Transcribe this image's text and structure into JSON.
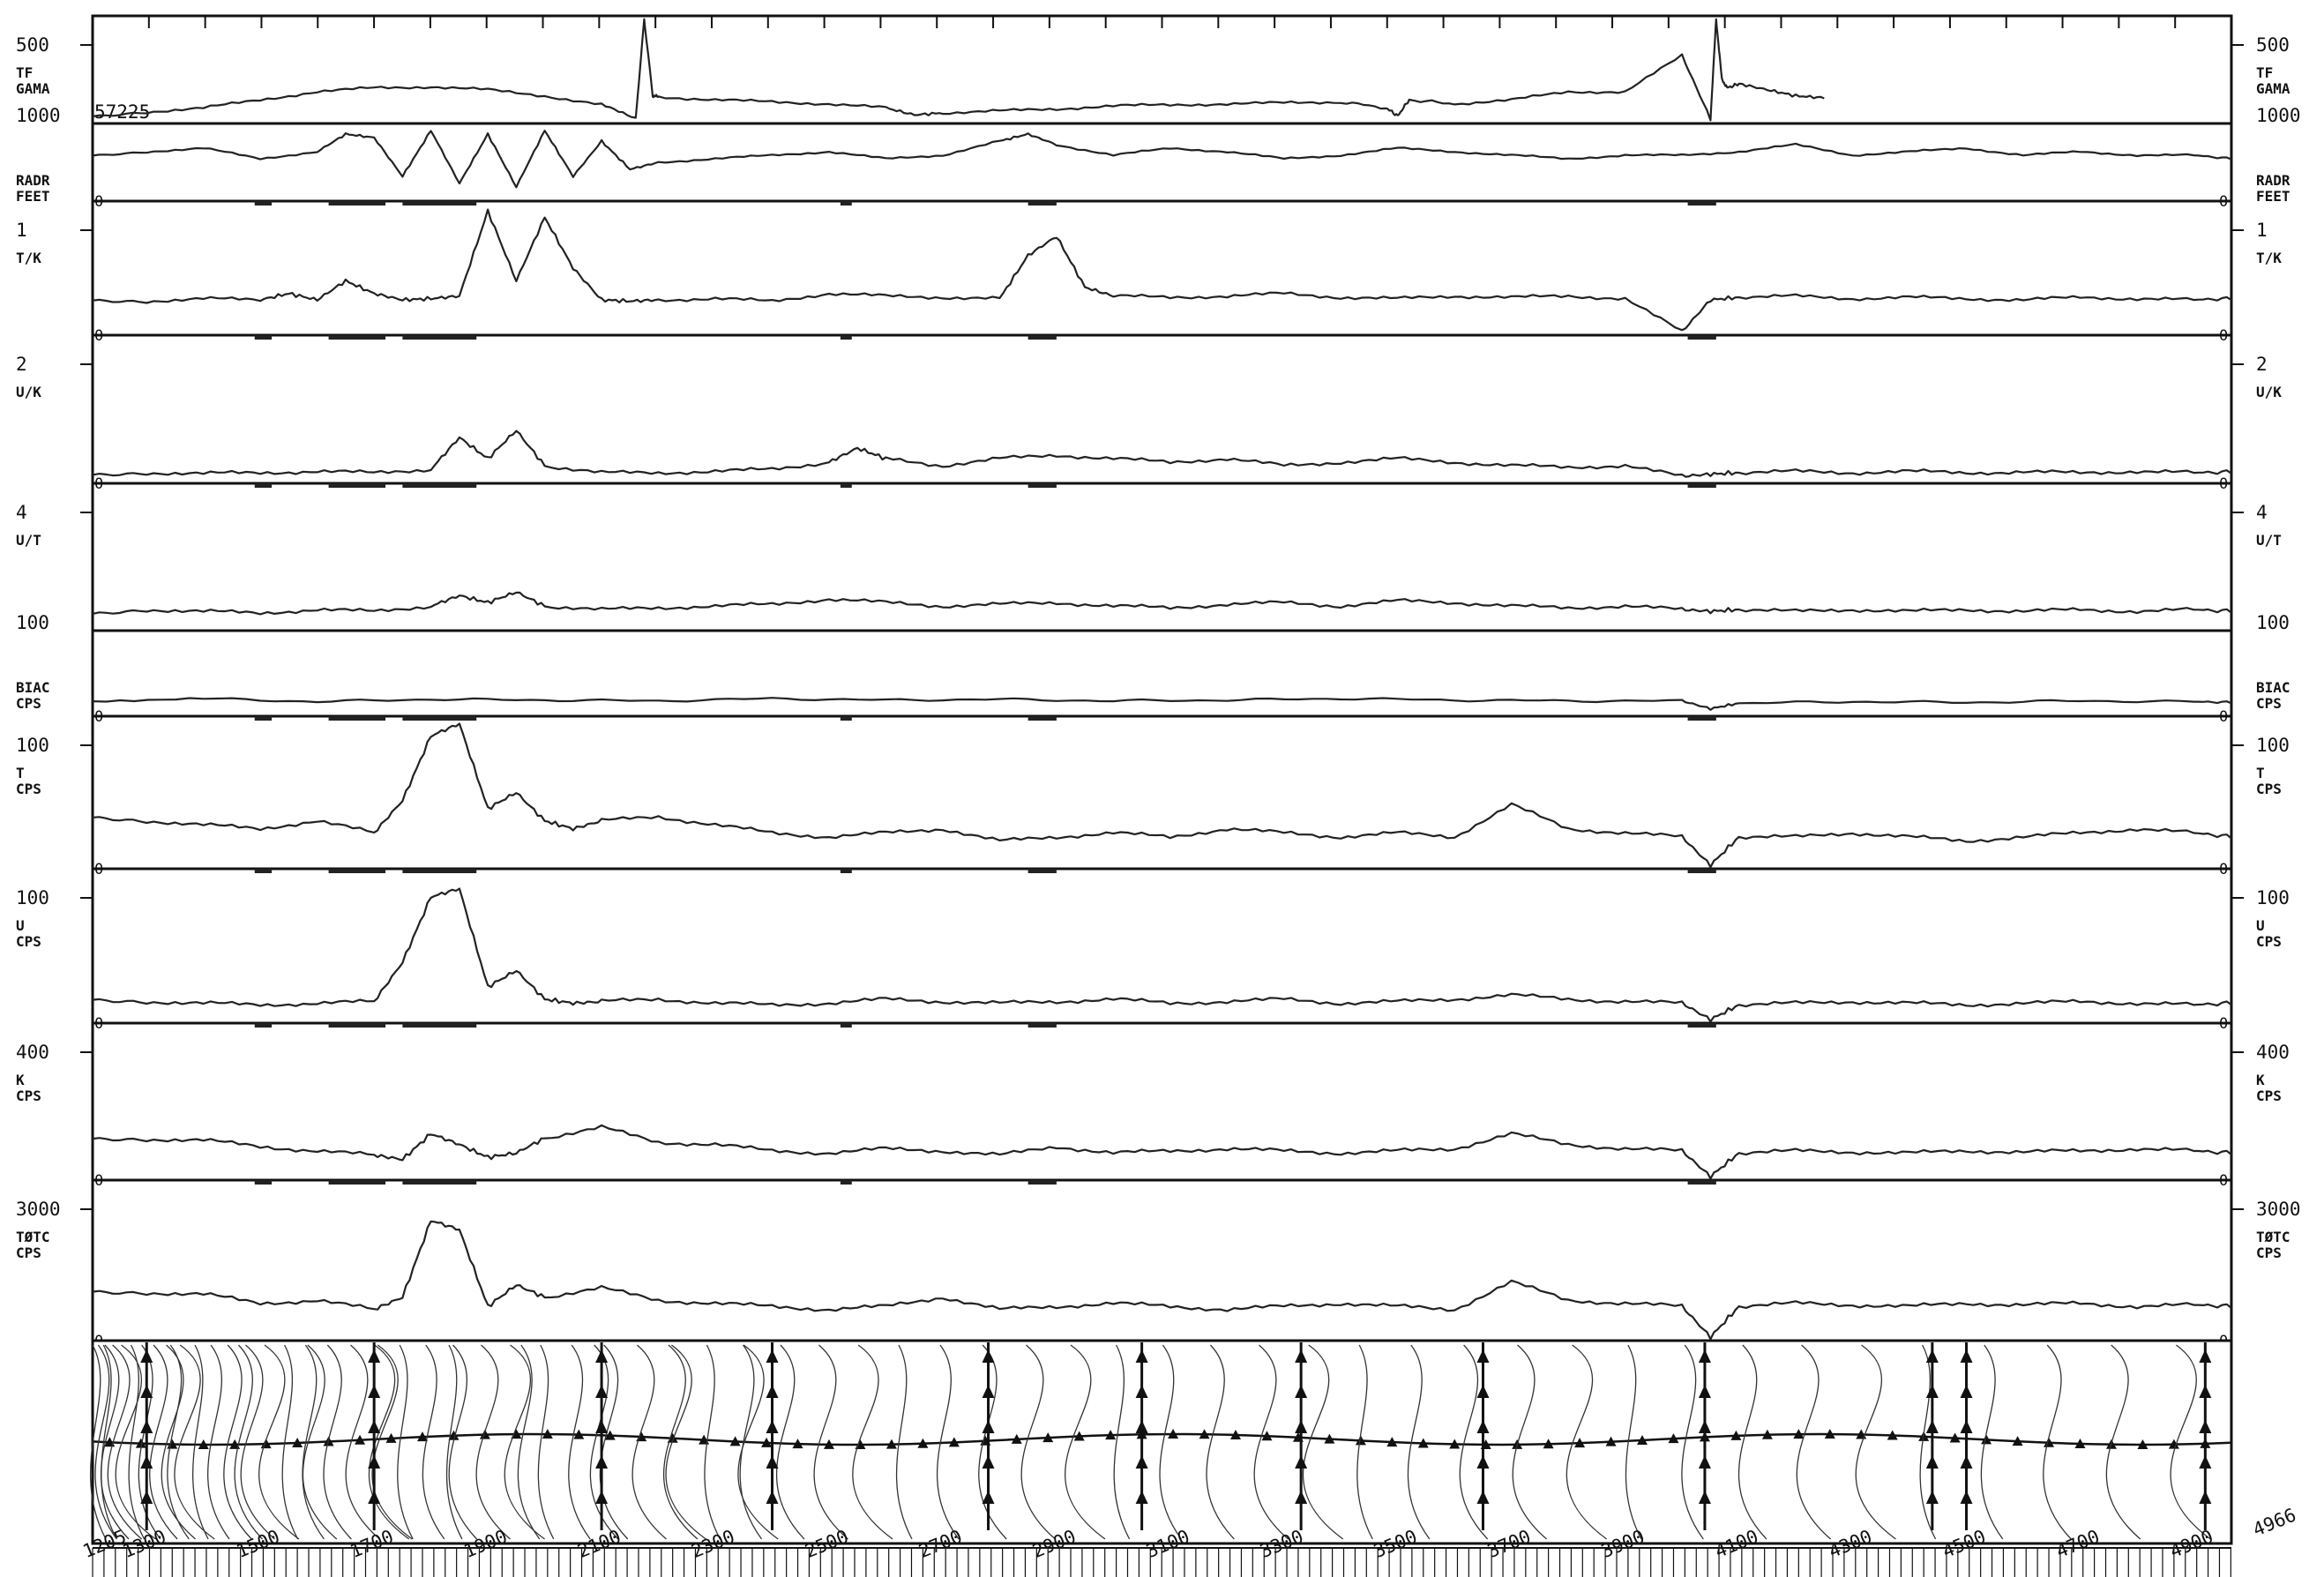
{
  "chart_data": {
    "type": "line",
    "record_id": "57225",
    "x_axis": {
      "range": [
        1205,
        4966
      ],
      "start_label": "1205",
      "end_label": "4966",
      "tick_labels": [
        "1300",
        "1500",
        "1700",
        "1900",
        "2100",
        "2300",
        "2500",
        "2700",
        "2900",
        "3100",
        "3300",
        "3500",
        "3700",
        "3900",
        "4100",
        "4300",
        "4500",
        "4700",
        "4900"
      ]
    },
    "panels": [
      {
        "id": "tf_gama",
        "label": [
          "TF",
          "GAMA"
        ],
        "scale_top": "500",
        "scale_bottom": "1000",
        "range": [
          500,
          1000
        ],
        "color": "#222222",
        "baseline": "",
        "extra": "57225",
        "x": [
          1205,
          1300,
          1400,
          1500,
          1600,
          1700,
          1800,
          1900,
          2000,
          2100,
          2160,
          2175,
          2190,
          2200,
          2300,
          2400,
          2500,
          2600,
          2650,
          2700,
          2800,
          2900,
          3000,
          3100,
          3200,
          3300,
          3400,
          3480,
          3500,
          3520,
          3600,
          3700,
          3800,
          3900,
          4000,
          4050,
          4060,
          4070,
          4080,
          4100,
          4150,
          4200,
          4250
        ],
        "y": [
          520,
          540,
          560,
          600,
          640,
          660,
          665,
          650,
          620,
          575,
          505,
          1000,
          620,
          615,
          600,
          590,
          580,
          560,
          525,
          535,
          545,
          555,
          570,
          575,
          580,
          585,
          590,
          560,
          520,
          600,
          580,
          600,
          640,
          640,
          820,
          505,
          1000,
          700,
          660,
          680,
          650,
          620,
          610
        ]
      },
      {
        "id": "radr_feet",
        "label": [
          "RADR",
          "FEET"
        ],
        "scale_top": "",
        "scale_bottom": "0",
        "range": [
          0,
          1000
        ],
        "color": "#222222",
        "baseline": "0",
        "x": [
          1205,
          1300,
          1400,
          1500,
          1600,
          1650,
          1700,
          1750,
          1800,
          1850,
          1900,
          1950,
          2000,
          2050,
          2100,
          2150,
          2200,
          2300,
          2400,
          2500,
          2600,
          2700,
          2800,
          2850,
          2900,
          3000,
          3100,
          3200,
          3300,
          3400,
          3500,
          3600,
          3700,
          3800,
          3900,
          4000,
          4100,
          4200,
          4300,
          4400,
          4500,
          4600,
          4700,
          4800,
          4900,
          4966
        ],
        "y": [
          600,
          650,
          700,
          550,
          650,
          900,
          850,
          300,
          950,
          200,
          900,
          150,
          950,
          300,
          800,
          400,
          500,
          550,
          600,
          650,
          550,
          600,
          800,
          900,
          750,
          600,
          700,
          650,
          550,
          600,
          700,
          650,
          600,
          550,
          600,
          600,
          650,
          750,
          600,
          650,
          700,
          600,
          650,
          600,
          600,
          550
        ]
      },
      {
        "id": "t_k",
        "label": [
          "T/K"
        ],
        "scale_top": "1",
        "scale_bottom": "0",
        "range": [
          0,
          1
        ],
        "color": "#222222",
        "baseline": "0",
        "x": [
          1205,
          1300,
          1400,
          1500,
          1550,
          1600,
          1650,
          1700,
          1750,
          1800,
          1850,
          1900,
          1950,
          2000,
          2050,
          2100,
          2150,
          2200,
          2300,
          2400,
          2500,
          2600,
          2700,
          2800,
          2850,
          2900,
          2950,
          3000,
          3100,
          3200,
          3300,
          3400,
          3500,
          3600,
          3700,
          3800,
          3900,
          4000,
          4050,
          4100,
          4200,
          4300,
          4400,
          4500,
          4600,
          4700,
          4800,
          4900,
          4966
        ],
        "y": [
          0.25,
          0.24,
          0.26,
          0.25,
          0.3,
          0.25,
          0.4,
          0.3,
          0.25,
          0.26,
          0.28,
          0.95,
          0.4,
          0.9,
          0.5,
          0.25,
          0.24,
          0.25,
          0.26,
          0.24,
          0.3,
          0.28,
          0.27,
          0.26,
          0.6,
          0.75,
          0.35,
          0.28,
          0.27,
          0.28,
          0.3,
          0.27,
          0.26,
          0.28,
          0.27,
          0.28,
          0.26,
          0.0,
          0.25,
          0.27,
          0.28,
          0.26,
          0.27,
          0.26,
          0.25,
          0.27,
          0.26,
          0.25,
          0.26
        ]
      },
      {
        "id": "u_k",
        "label": [
          "U/K"
        ],
        "scale_top": "2",
        "scale_bottom": "0",
        "range": [
          0,
          2
        ],
        "color": "#222222",
        "baseline": "0",
        "x": [
          1205,
          1300,
          1400,
          1500,
          1600,
          1700,
          1800,
          1850,
          1900,
          1950,
          2000,
          2100,
          2200,
          2300,
          2400,
          2500,
          2550,
          2600,
          2700,
          2800,
          2900,
          3000,
          3100,
          3200,
          3300,
          3400,
          3500,
          3600,
          3700,
          3800,
          3900,
          4000,
          4050,
          4100,
          4200,
          4300,
          4400,
          4500,
          4600,
          4700,
          4800,
          4900,
          4966
        ],
        "y": [
          0.08,
          0.1,
          0.09,
          0.1,
          0.12,
          0.1,
          0.15,
          0.6,
          0.3,
          0.7,
          0.2,
          0.1,
          0.1,
          0.12,
          0.15,
          0.25,
          0.45,
          0.3,
          0.2,
          0.3,
          0.35,
          0.3,
          0.25,
          0.3,
          0.2,
          0.25,
          0.3,
          0.25,
          0.2,
          0.18,
          0.2,
          0.05,
          0.08,
          0.1,
          0.12,
          0.1,
          0.12,
          0.1,
          0.11,
          0.1,
          0.12,
          0.1,
          0.11
        ]
      },
      {
        "id": "u_t",
        "label": [
          "U/T"
        ],
        "scale_top": "4",
        "scale_bottom": "100",
        "range": [
          0,
          4
        ],
        "color": "#222222",
        "baseline": "",
        "x": [
          1205,
          1300,
          1400,
          1500,
          1600,
          1700,
          1800,
          1850,
          1900,
          1950,
          2000,
          2100,
          2200,
          2300,
          2400,
          2500,
          2600,
          2700,
          2800,
          2900,
          3000,
          3100,
          3200,
          3300,
          3400,
          3500,
          3600,
          3700,
          3800,
          3900,
          4000,
          4050,
          4100,
          4200,
          4300,
          4400,
          4500,
          4600,
          4700,
          4800,
          4900,
          4966
        ],
        "y": [
          0.4,
          0.5,
          0.45,
          0.4,
          0.5,
          0.45,
          0.6,
          0.9,
          0.7,
          1.0,
          0.6,
          0.5,
          0.55,
          0.6,
          0.65,
          0.8,
          0.7,
          0.6,
          0.65,
          0.7,
          0.6,
          0.55,
          0.65,
          0.7,
          0.6,
          0.75,
          0.7,
          0.6,
          0.55,
          0.6,
          0.5,
          0.45,
          0.5,
          0.45,
          0.5,
          0.45,
          0.5,
          0.45,
          0.5,
          0.45,
          0.5,
          0.45
        ]
      },
      {
        "id": "biac_cps",
        "label": [
          "BIAC",
          "CPS"
        ],
        "scale_top": "",
        "scale_bottom": "",
        "range": [
          0,
          100
        ],
        "color": "#222222",
        "baseline": "0",
        "x": [
          1205,
          1400,
          1600,
          1800,
          2000,
          2200,
          2400,
          2600,
          2800,
          3000,
          3200,
          3400,
          3600,
          3800,
          4000,
          4050,
          4100,
          4300,
          4500,
          4700,
          4900,
          4966
        ],
        "y": [
          15,
          18,
          14,
          17,
          16,
          15,
          18,
          16,
          17,
          15,
          16,
          18,
          16,
          15,
          15,
          5,
          12,
          14,
          13,
          15,
          14,
          13
        ]
      },
      {
        "id": "t_cps",
        "label": [
          "T",
          "CPS"
        ],
        "scale_top": "100",
        "scale_bottom": "0",
        "range": [
          0,
          180
        ],
        "color": "#222222",
        "baseline": "0",
        "x": [
          1205,
          1300,
          1400,
          1500,
          1600,
          1700,
          1750,
          1800,
          1850,
          1900,
          1950,
          2000,
          2050,
          2100,
          2200,
          2300,
          2400,
          2500,
          2600,
          2700,
          2800,
          2900,
          3000,
          3100,
          3200,
          3300,
          3400,
          3500,
          3600,
          3700,
          3800,
          3900,
          4000,
          4050,
          4100,
          4200,
          4300,
          4400,
          4500,
          4600,
          4700,
          4800,
          4900,
          4966
        ],
        "y": [
          60,
          55,
          50,
          45,
          55,
          40,
          80,
          160,
          175,
          70,
          90,
          55,
          45,
          55,
          60,
          50,
          40,
          35,
          40,
          45,
          30,
          35,
          40,
          35,
          45,
          40,
          35,
          40,
          35,
          75,
          45,
          40,
          35,
          0,
          35,
          35,
          40,
          35,
          30,
          35,
          40,
          45,
          40,
          35
        ]
      },
      {
        "id": "u_cps",
        "label": [
          "U",
          "CPS"
        ],
        "scale_top": "100",
        "scale_bottom": "0",
        "range": [
          0,
          180
        ],
        "color": "#222222",
        "baseline": "0",
        "x": [
          1205,
          1300,
          1400,
          1500,
          1600,
          1700,
          1750,
          1800,
          1850,
          1900,
          1950,
          2000,
          2050,
          2100,
          2200,
          2300,
          2400,
          2500,
          2600,
          2700,
          2800,
          2900,
          3000,
          3100,
          3200,
          3300,
          3400,
          3500,
          3600,
          3700,
          3800,
          3900,
          4000,
          4050,
          4100,
          4200,
          4300,
          4400,
          4500,
          4600,
          4700,
          4800,
          4900,
          4966
        ],
        "y": [
          25,
          22,
          20,
          18,
          20,
          22,
          70,
          150,
          160,
          40,
          60,
          25,
          20,
          22,
          25,
          20,
          18,
          20,
          25,
          22,
          20,
          22,
          25,
          20,
          22,
          25,
          20,
          22,
          25,
          30,
          25,
          22,
          20,
          0,
          18,
          20,
          22,
          20,
          18,
          20,
          22,
          20,
          18,
          20
        ]
      },
      {
        "id": "k_cps",
        "label": [
          "K",
          "CPS"
        ],
        "scale_top": "400",
        "scale_bottom": "0",
        "range": [
          0,
          700
        ],
        "color": "#222222",
        "baseline": "0",
        "x": [
          1205,
          1300,
          1400,
          1500,
          1600,
          1700,
          1750,
          1800,
          1850,
          1900,
          1950,
          2000,
          2100,
          2200,
          2300,
          2400,
          2500,
          2600,
          2700,
          2800,
          2900,
          3000,
          3100,
          3200,
          3300,
          3400,
          3500,
          3600,
          3700,
          3800,
          3900,
          4000,
          4050,
          4100,
          4200,
          4300,
          4400,
          4500,
          4600,
          4700,
          4800,
          4900,
          4966
        ],
        "y": [
          180,
          175,
          170,
          140,
          120,
          100,
          80,
          200,
          150,
          90,
          110,
          180,
          230,
          160,
          150,
          120,
          110,
          130,
          120,
          100,
          140,
          110,
          120,
          130,
          120,
          110,
          120,
          130,
          200,
          150,
          130,
          120,
          0,
          110,
          120,
          115,
          110,
          120,
          115,
          120,
          130,
          120,
          110
        ]
      },
      {
        "id": "totc_cps",
        "label": [
          "TØTC",
          "CPS"
        ],
        "scale_top": "3000",
        "scale_bottom": "0",
        "range": [
          0,
          5000
        ],
        "color": "#222222",
        "baseline": "0",
        "x": [
          1205,
          1300,
          1400,
          1500,
          1600,
          1700,
          1750,
          1800,
          1850,
          1900,
          1950,
          2000,
          2100,
          2200,
          2300,
          2400,
          2500,
          2600,
          2700,
          2800,
          2900,
          3000,
          3100,
          3200,
          3300,
          3400,
          3500,
          3600,
          3700,
          3800,
          3900,
          4000,
          4050,
          4100,
          4200,
          4300,
          4400,
          4500,
          4600,
          4700,
          4800,
          4900,
          4966
        ],
        "y": [
          1500,
          1450,
          1400,
          1100,
          1200,
          900,
          1300,
          3800,
          3500,
          1000,
          1700,
          1300,
          1600,
          1200,
          1100,
          1000,
          900,
          1000,
          1300,
          900,
          1000,
          1100,
          1000,
          900,
          1000,
          1100,
          1000,
          900,
          1800,
          1200,
          1100,
          1000,
          0,
          1000,
          1100,
          1050,
          1000,
          1100,
          1050,
          1100,
          1000,
          1050,
          1000
        ]
      }
    ],
    "map_strip": {
      "annotations": [
        "4966"
      ]
    }
  }
}
